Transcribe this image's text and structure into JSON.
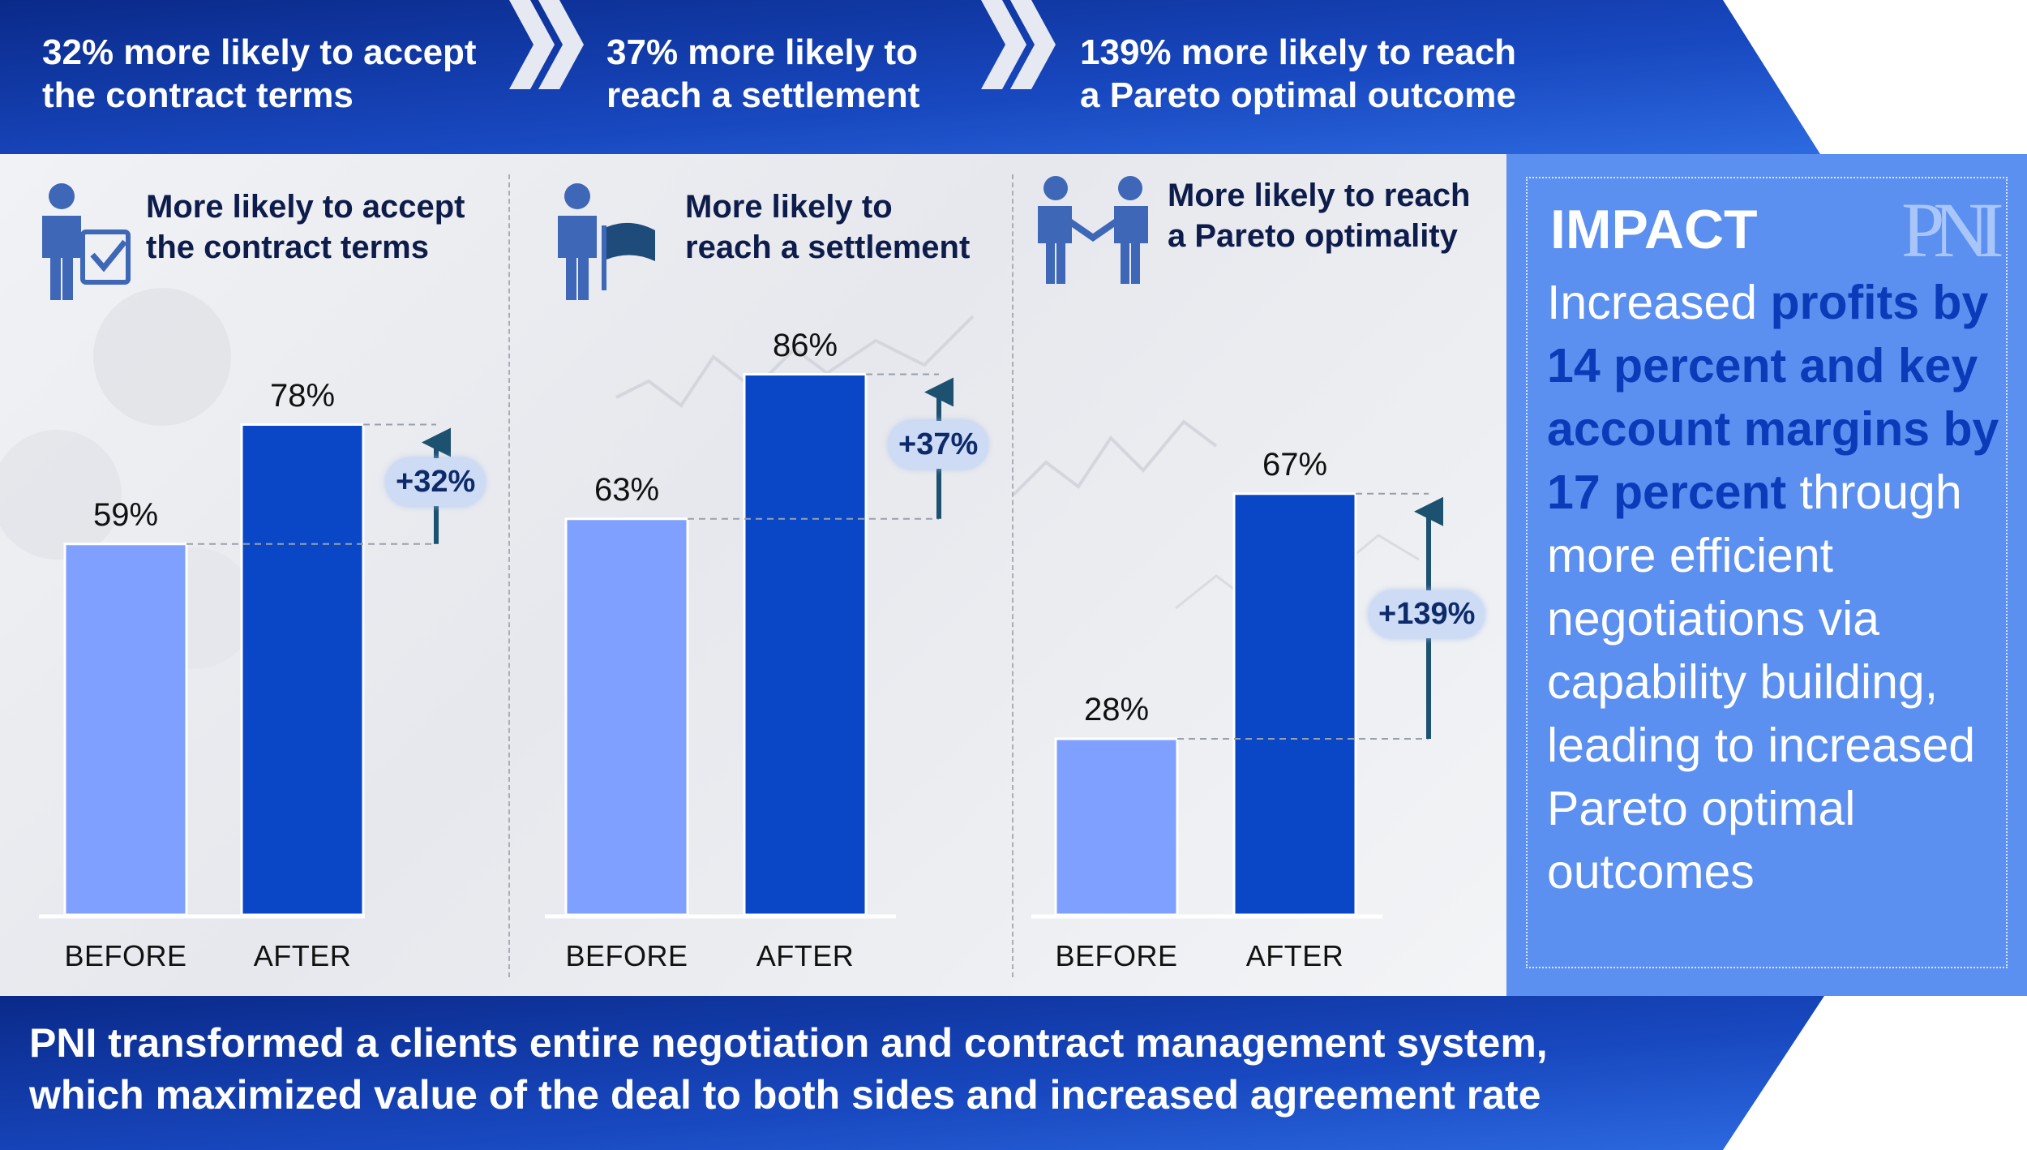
{
  "header": {
    "items": [
      {
        "text": "32% more likely to accept\nthe contract terms"
      },
      {
        "text": "37% more likely to\nreach a settlement"
      },
      {
        "text": "139% more likely to reach\na Pareto optimal outcome"
      }
    ]
  },
  "colors": {
    "before_bar": "#7fa0ff",
    "after_bar": "#0a47c6",
    "banner_dark": "#0a2a8a",
    "banner_light": "#2d6ae0",
    "impact_bg": "#5b8ff0",
    "impact_highlight": "#0b3bb8",
    "arrow": "#1d5170"
  },
  "chart_data": [
    {
      "type": "bar",
      "title": "More likely to accept\nthe contract terms",
      "icon": "person-checklist-icon",
      "categories": [
        "BEFORE",
        "AFTER"
      ],
      "values": [
        59,
        78
      ],
      "value_labels": [
        "59%",
        "78%"
      ],
      "change_label": "+32%",
      "ylim": [
        0,
        100
      ]
    },
    {
      "type": "bar",
      "title": "More likely to\nreach a settlement",
      "icon": "person-flag-icon",
      "categories": [
        "BEFORE",
        "AFTER"
      ],
      "values": [
        63,
        86
      ],
      "value_labels": [
        "63%",
        "86%"
      ],
      "change_label": "+37%",
      "ylim": [
        0,
        100
      ]
    },
    {
      "type": "bar",
      "title": "More likely to reach\na Pareto optimality",
      "icon": "handshake-icon",
      "categories": [
        "BEFORE",
        "AFTER"
      ],
      "values": [
        28,
        67
      ],
      "value_labels": [
        "28%",
        "67%"
      ],
      "change_label": "+139%",
      "ylim": [
        0,
        100
      ]
    }
  ],
  "impact": {
    "title": "IMPACT",
    "logo": "PNI",
    "text_parts": [
      {
        "text": "Increased ",
        "highlight": false
      },
      {
        "text": "profits by 14 percent and key account margins by 17 percent",
        "highlight": true
      },
      {
        "text": " through more efficient negotiations via capability building, leading to increased Pareto optimal outcomes",
        "highlight": false
      }
    ]
  },
  "footer": {
    "text": "PNI transformed a clients entire negotiation and contract management system,\nwhich maximized value of the deal to both sides and increased agreement rate"
  }
}
